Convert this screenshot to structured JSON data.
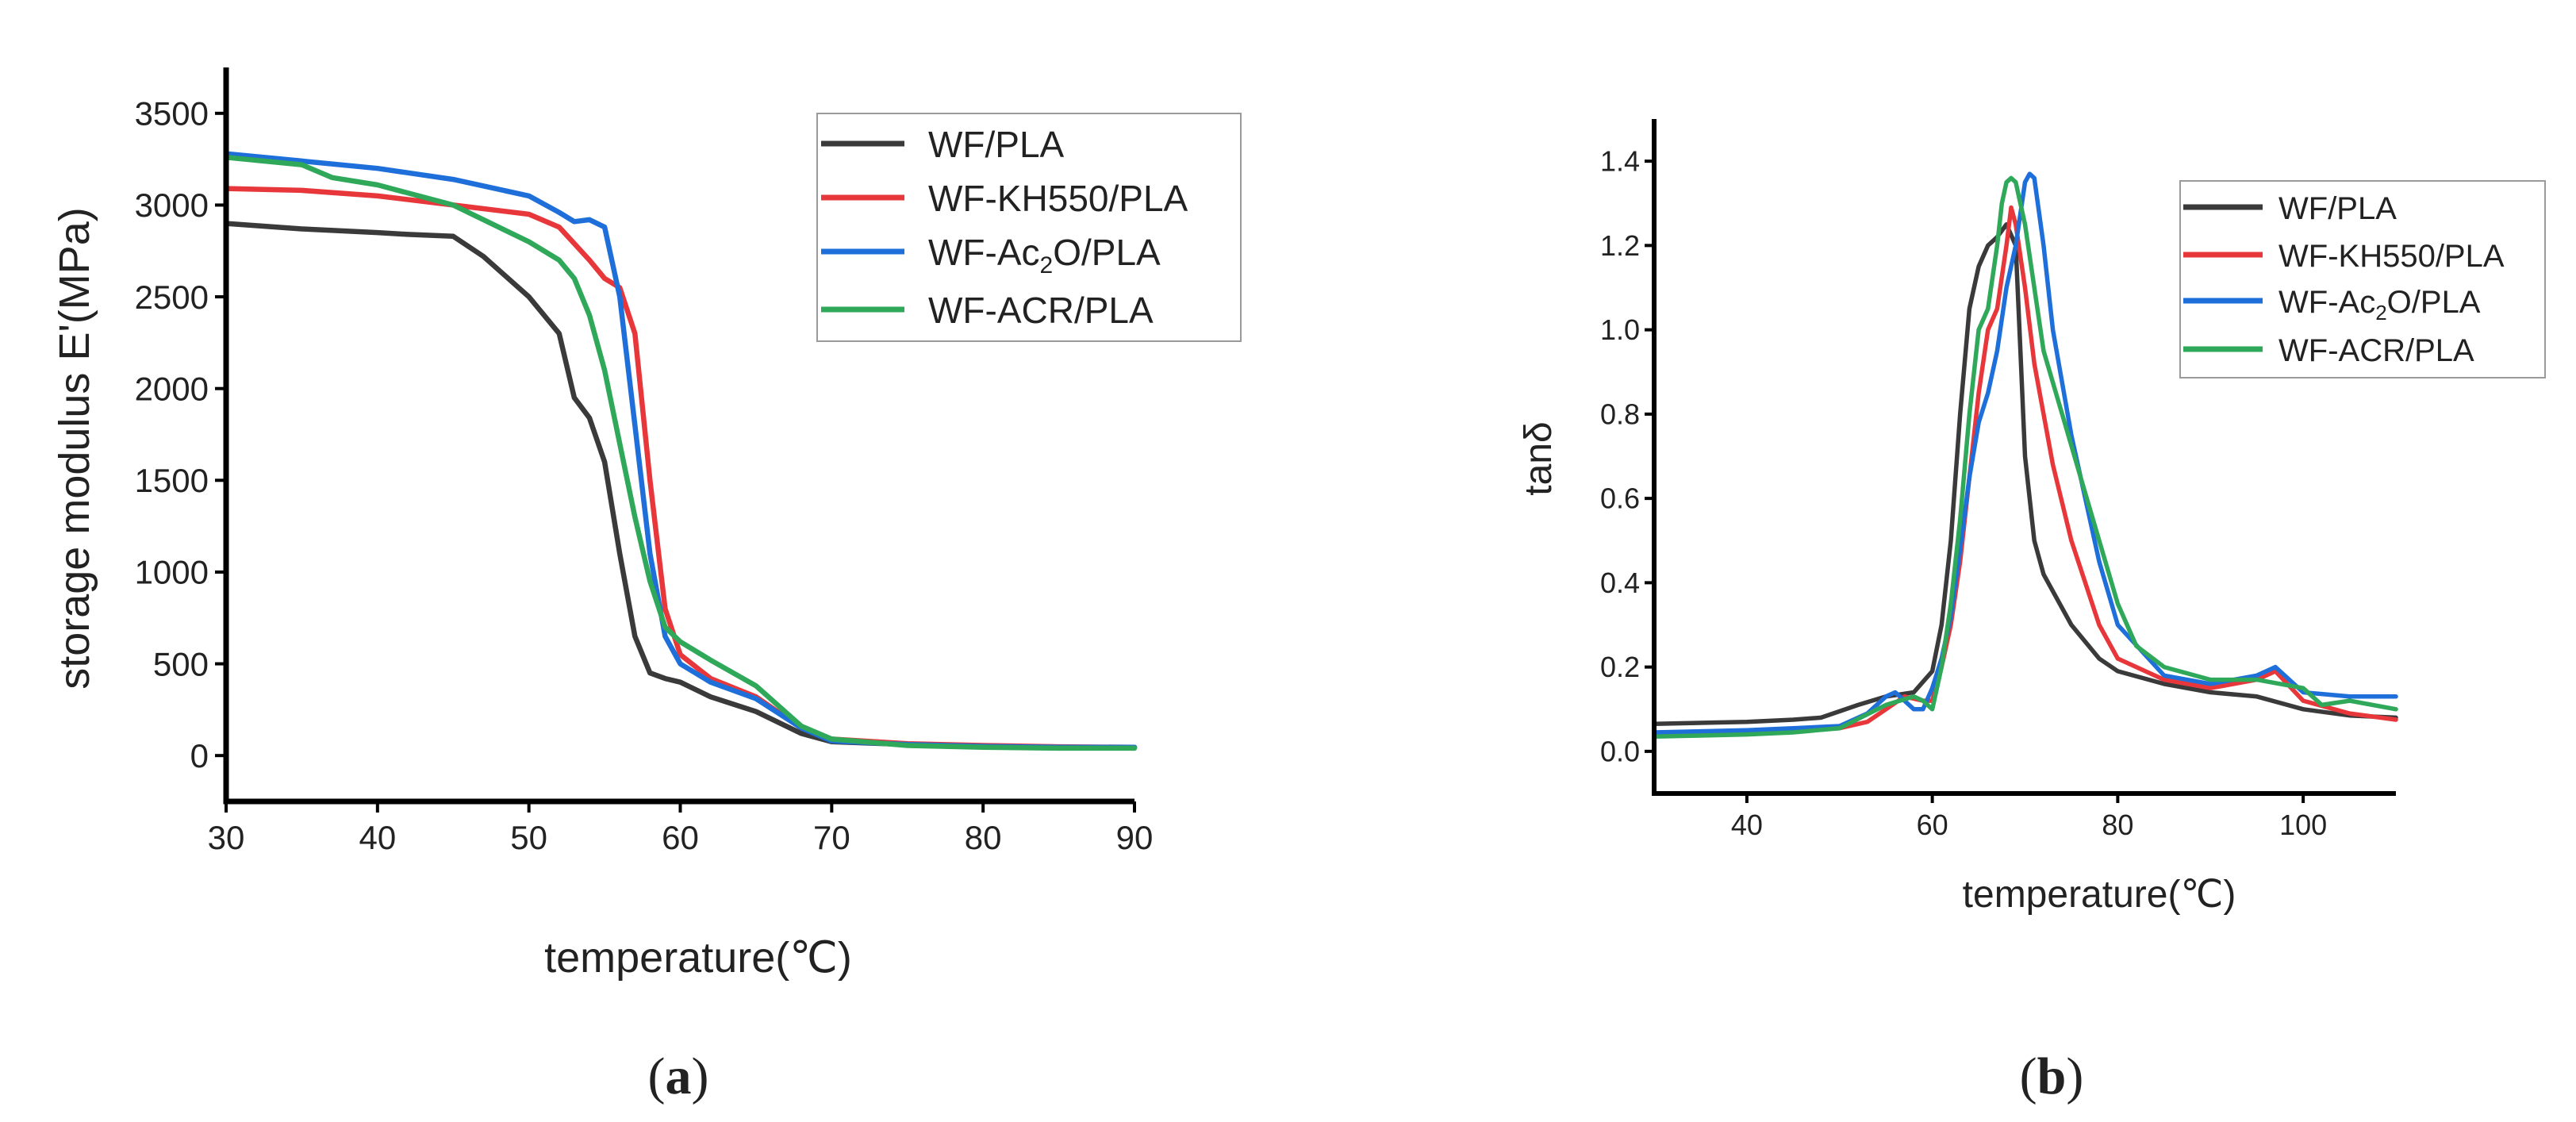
{
  "colors": {
    "WF/PLA": "#3a3a3a",
    "WF-KH550/PLA": "#e8373a",
    "WF-Ac2O/PLA": "#1e6fd9",
    "WF-ACR/PLA": "#2fa85a"
  },
  "chart_data": [
    {
      "type": "line",
      "panel_label": "(a)",
      "panel_letter": "a",
      "title": "",
      "xlabel": "temperature(℃)",
      "ylabel": "storage modulus E'(MPa)",
      "xlim": [
        30,
        90
      ],
      "ylim": [
        -250,
        3750
      ],
      "xticks": [
        30,
        40,
        50,
        60,
        70,
        80,
        90
      ],
      "yticks": [
        0,
        500,
        1000,
        1500,
        2000,
        2500,
        3000,
        3500
      ],
      "grid": false,
      "legend_position": "top-right",
      "series": [
        {
          "name": "WF/PLA",
          "legend_label": "WF/PLA",
          "x": [
            30,
            35,
            40,
            42,
            45,
            47,
            50,
            52,
            53,
            54,
            55,
            56,
            57,
            58,
            59,
            60,
            62,
            65,
            68,
            70,
            75,
            80,
            85,
            90
          ],
          "y": [
            2900,
            2870,
            2850,
            2840,
            2830,
            2720,
            2500,
            2300,
            1950,
            1840,
            1600,
            1100,
            650,
            450,
            420,
            400,
            320,
            240,
            120,
            75,
            60,
            50,
            45,
            45
          ]
        },
        {
          "name": "WF-KH550/PLA",
          "legend_label": "WF-KH550/PLA",
          "x": [
            30,
            35,
            40,
            45,
            50,
            52,
            54,
            55,
            56,
            57,
            58,
            59,
            60,
            62,
            65,
            68,
            70,
            75,
            80,
            85,
            90
          ],
          "y": [
            3090,
            3080,
            3050,
            3000,
            2950,
            2880,
            2700,
            2600,
            2550,
            2300,
            1500,
            800,
            550,
            420,
            320,
            150,
            90,
            65,
            55,
            48,
            45
          ]
        },
        {
          "name": "WF-Ac2O/PLA",
          "legend_label": "WF-Ac",
          "legend_sub": "2",
          "legend_suffix": "O/PLA",
          "x": [
            30,
            35,
            40,
            45,
            50,
            52,
            53,
            54,
            55,
            56,
            57,
            58,
            59,
            60,
            62,
            65,
            68,
            70,
            75,
            80,
            85,
            90
          ],
          "y": [
            3280,
            3240,
            3200,
            3140,
            3050,
            2960,
            2910,
            2920,
            2880,
            2500,
            1800,
            1100,
            650,
            500,
            400,
            310,
            150,
            80,
            60,
            50,
            45,
            45
          ]
        },
        {
          "name": "WF-ACR/PLA",
          "legend_label": "WF-ACR/PLA",
          "x": [
            30,
            35,
            37,
            40,
            45,
            48,
            50,
            52,
            53,
            54,
            55,
            56,
            57,
            58,
            59,
            60,
            62,
            65,
            68,
            70,
            75,
            80,
            85,
            90
          ],
          "y": [
            3260,
            3220,
            3150,
            3110,
            3000,
            2880,
            2800,
            2700,
            2600,
            2400,
            2100,
            1700,
            1300,
            950,
            700,
            620,
            520,
            380,
            160,
            90,
            55,
            45,
            40,
            40
          ]
        }
      ]
    },
    {
      "type": "line",
      "panel_label": "(b)",
      "panel_letter": "b",
      "title": "",
      "xlabel": "temperature(℃)",
      "ylabel": "tanδ",
      "xlim": [
        30,
        110
      ],
      "ylim": [
        -0.1,
        1.5
      ],
      "xticks": [
        40,
        60,
        80,
        100
      ],
      "yticks": [
        0.0,
        0.2,
        0.4,
        0.6,
        0.8,
        1.0,
        1.2,
        1.4
      ],
      "grid": false,
      "legend_position": "top-right",
      "series": [
        {
          "name": "WF/PLA",
          "legend_label": "WF/PLA",
          "x": [
            30,
            40,
            45,
            48,
            50,
            52,
            55,
            58,
            60,
            61,
            62,
            63,
            64,
            65,
            66,
            67,
            68,
            69,
            69.5,
            70,
            71,
            72,
            75,
            78,
            80,
            85,
            90,
            95,
            100,
            105,
            110
          ],
          "y": [
            0.065,
            0.07,
            0.075,
            0.08,
            0.095,
            0.11,
            0.13,
            0.14,
            0.19,
            0.3,
            0.5,
            0.8,
            1.05,
            1.15,
            1.2,
            1.22,
            1.25,
            1.2,
            0.95,
            0.7,
            0.5,
            0.42,
            0.3,
            0.22,
            0.19,
            0.16,
            0.14,
            0.13,
            0.1,
            0.085,
            0.08
          ]
        },
        {
          "name": "WF-KH550/PLA",
          "legend_label": "WF-KH550/PLA",
          "x": [
            30,
            40,
            45,
            50,
            53,
            55,
            57,
            59,
            60,
            61,
            62,
            63,
            64,
            65,
            66,
            67,
            68,
            68.5,
            69,
            70,
            71,
            72,
            73,
            75,
            78,
            80,
            85,
            90,
            95,
            97,
            100,
            105,
            110
          ],
          "y": [
            0.04,
            0.045,
            0.05,
            0.055,
            0.07,
            0.1,
            0.13,
            0.12,
            0.12,
            0.2,
            0.3,
            0.45,
            0.65,
            0.85,
            1.0,
            1.05,
            1.2,
            1.29,
            1.25,
            1.1,
            0.92,
            0.8,
            0.68,
            0.5,
            0.3,
            0.22,
            0.17,
            0.15,
            0.17,
            0.19,
            0.12,
            0.09,
            0.075
          ]
        },
        {
          "name": "WF-Ac2O/PLA",
          "legend_label": "WF-Ac",
          "legend_sub": "2",
          "legend_suffix": "O/PLA",
          "x": [
            30,
            40,
            45,
            50,
            53,
            55,
            56,
            57,
            58,
            59,
            60,
            61,
            62,
            63,
            64,
            65,
            66,
            67,
            68,
            69,
            70,
            70.5,
            71,
            72,
            73,
            75,
            78,
            80,
            85,
            90,
            95,
            97,
            100,
            105,
            110
          ],
          "y": [
            0.045,
            0.05,
            0.055,
            0.06,
            0.09,
            0.13,
            0.14,
            0.12,
            0.1,
            0.1,
            0.15,
            0.22,
            0.32,
            0.48,
            0.65,
            0.78,
            0.85,
            0.95,
            1.1,
            1.2,
            1.35,
            1.37,
            1.36,
            1.2,
            1.0,
            0.75,
            0.45,
            0.3,
            0.18,
            0.16,
            0.18,
            0.2,
            0.14,
            0.13,
            0.13
          ]
        },
        {
          "name": "WF-ACR/PLA",
          "legend_label": "WF-ACR/PLA",
          "x": [
            30,
            40,
            45,
            50,
            55,
            58,
            59,
            60,
            61,
            62,
            63,
            64,
            65,
            66,
            67,
            67.5,
            68,
            68.5,
            69,
            70,
            71,
            72,
            74,
            76,
            78,
            80,
            82,
            85,
            90,
            95,
            100,
            102,
            105,
            110
          ],
          "y": [
            0.035,
            0.04,
            0.045,
            0.055,
            0.11,
            0.13,
            0.12,
            0.1,
            0.2,
            0.35,
            0.55,
            0.8,
            1.0,
            1.05,
            1.2,
            1.3,
            1.35,
            1.36,
            1.35,
            1.25,
            1.1,
            0.95,
            0.8,
            0.65,
            0.5,
            0.35,
            0.25,
            0.2,
            0.17,
            0.17,
            0.15,
            0.11,
            0.12,
            0.1
          ]
        }
      ]
    }
  ]
}
